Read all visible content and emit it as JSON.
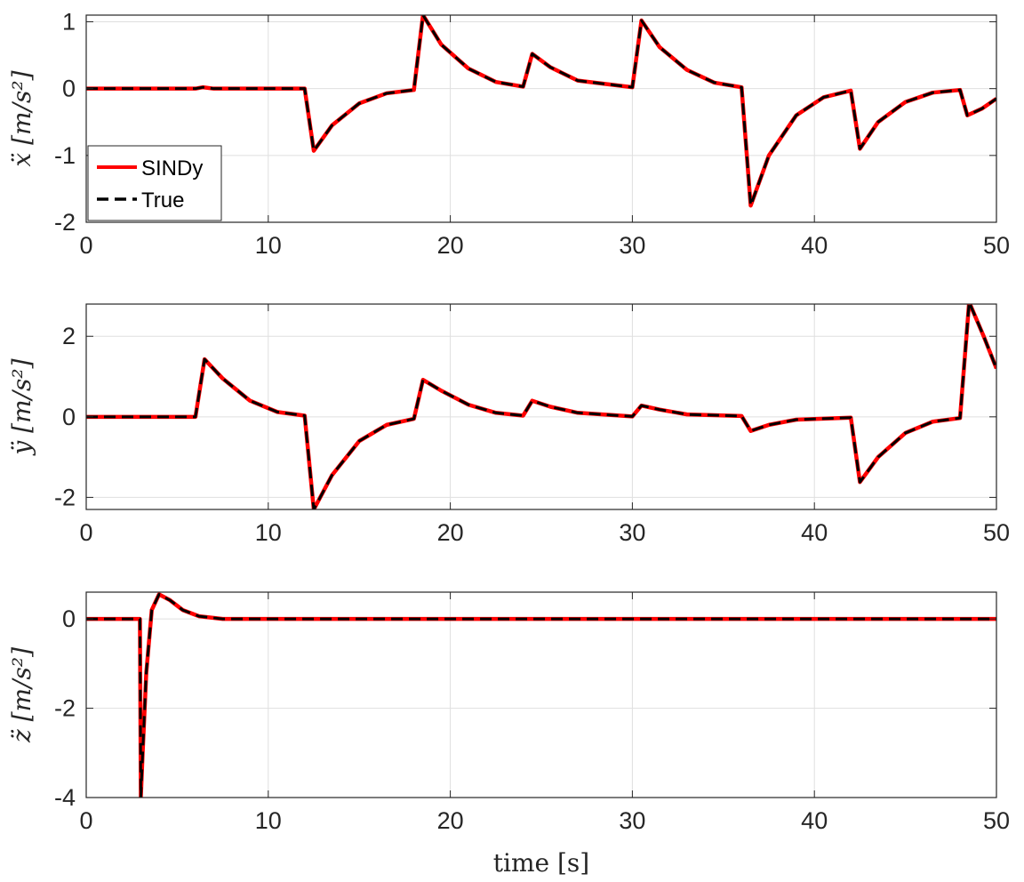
{
  "chart_data": [
    {
      "type": "line",
      "ylabel": "ẍ [m/s²]",
      "xlabel": "",
      "xlim": [
        0,
        50
      ],
      "ylim": [
        -2,
        1.1
      ],
      "xticks": [
        "0",
        "10",
        "20",
        "30",
        "40",
        "50"
      ],
      "yticks": [
        {
          "value": -2,
          "label": "-2"
        },
        {
          "value": -1,
          "label": "-1"
        },
        {
          "value": 0,
          "label": "0"
        },
        {
          "value": 1,
          "label": "1"
        }
      ],
      "grid": true,
      "legend": {
        "placement": "bottom-left",
        "entries": [
          "SINDy",
          "True"
        ]
      },
      "series": [
        {
          "name": "SINDy",
          "color": "#ff0000",
          "style": "solid",
          "x": [
            0,
            6.0,
            6.4,
            7.0,
            12.0,
            12.5,
            13.5,
            15,
            16.5,
            18.0,
            18.5,
            19.5,
            21,
            22.5,
            24.0,
            24.5,
            25.5,
            27,
            30.0,
            30.5,
            31.5,
            33,
            34.5,
            36.0,
            36.5,
            37.5,
            39,
            40.5,
            42.0,
            42.5,
            43.5,
            45,
            46.5,
            48.0,
            48.4,
            49.2,
            50
          ],
          "y": [
            0,
            0,
            0.02,
            0.0,
            0,
            -0.93,
            -0.55,
            -0.22,
            -0.07,
            -0.02,
            1.1,
            0.66,
            0.3,
            0.1,
            0.03,
            0.52,
            0.32,
            0.12,
            0.02,
            1.02,
            0.62,
            0.28,
            0.09,
            0.02,
            -1.75,
            -1.0,
            -0.4,
            -0.13,
            -0.03,
            -0.9,
            -0.5,
            -0.2,
            -0.06,
            -0.02,
            -0.4,
            -0.3,
            -0.15
          ]
        },
        {
          "name": "True",
          "color": "#000000",
          "style": "dashed",
          "x": [
            0,
            6.0,
            6.4,
            7.0,
            12.0,
            12.5,
            13.5,
            15,
            16.5,
            18.0,
            18.5,
            19.5,
            21,
            22.5,
            24.0,
            24.5,
            25.5,
            27,
            30.0,
            30.5,
            31.5,
            33,
            34.5,
            36.0,
            36.5,
            37.5,
            39,
            40.5,
            42.0,
            42.5,
            43.5,
            45,
            46.5,
            48.0,
            48.4,
            49.2,
            50
          ],
          "y": [
            0,
            0,
            0.02,
            0.0,
            0,
            -0.93,
            -0.55,
            -0.22,
            -0.07,
            -0.02,
            1.1,
            0.66,
            0.3,
            0.1,
            0.03,
            0.52,
            0.32,
            0.12,
            0.02,
            1.02,
            0.62,
            0.28,
            0.09,
            0.02,
            -1.75,
            -1.0,
            -0.4,
            -0.13,
            -0.03,
            -0.9,
            -0.5,
            -0.2,
            -0.06,
            -0.02,
            -0.4,
            -0.3,
            -0.15
          ]
        }
      ]
    },
    {
      "type": "line",
      "ylabel": "ÿ [m/s²]",
      "xlabel": "",
      "xlim": [
        0,
        50
      ],
      "ylim": [
        -2.3,
        2.8
      ],
      "xticks": [
        "0",
        "10",
        "20",
        "30",
        "40",
        "50"
      ],
      "yticks": [
        {
          "value": -2,
          "label": "-2"
        },
        {
          "value": 0,
          "label": "0"
        },
        {
          "value": 2,
          "label": "2"
        }
      ],
      "grid": true,
      "series": [
        {
          "name": "SINDy",
          "color": "#ff0000",
          "style": "solid",
          "x": [
            0,
            6.0,
            6.5,
            7.5,
            9,
            10.5,
            12.0,
            12.5,
            13.5,
            15,
            16.5,
            18.0,
            18.5,
            19.5,
            21,
            22.5,
            24.0,
            24.5,
            25.5,
            27,
            30.0,
            30.5,
            31.5,
            33,
            36.0,
            36.5,
            37.5,
            39,
            42.0,
            42.5,
            43.5,
            45,
            46.5,
            48.0,
            48.5,
            49.3,
            50
          ],
          "y": [
            0,
            0,
            1.43,
            0.95,
            0.4,
            0.12,
            0.03,
            -2.3,
            -1.45,
            -0.6,
            -0.2,
            -0.05,
            0.92,
            0.65,
            0.3,
            0.1,
            0.03,
            0.4,
            0.25,
            0.1,
            0.01,
            0.28,
            0.18,
            0.06,
            0.02,
            -0.35,
            -0.2,
            -0.07,
            -0.02,
            -1.62,
            -1.0,
            -0.4,
            -0.12,
            -0.03,
            2.85,
            2.0,
            1.2
          ]
        },
        {
          "name": "True",
          "color": "#000000",
          "style": "dashed",
          "x": [
            0,
            6.0,
            6.5,
            7.5,
            9,
            10.5,
            12.0,
            12.5,
            13.5,
            15,
            16.5,
            18.0,
            18.5,
            19.5,
            21,
            22.5,
            24.0,
            24.5,
            25.5,
            27,
            30.0,
            30.5,
            31.5,
            33,
            36.0,
            36.5,
            37.5,
            39,
            42.0,
            42.5,
            43.5,
            45,
            46.5,
            48.0,
            48.5,
            49.3,
            50
          ],
          "y": [
            0,
            0,
            1.43,
            0.95,
            0.4,
            0.12,
            0.03,
            -2.3,
            -1.45,
            -0.6,
            -0.2,
            -0.05,
            0.92,
            0.65,
            0.3,
            0.1,
            0.03,
            0.4,
            0.25,
            0.1,
            0.01,
            0.28,
            0.18,
            0.06,
            0.02,
            -0.35,
            -0.2,
            -0.07,
            -0.02,
            -1.62,
            -1.0,
            -0.4,
            -0.12,
            -0.03,
            2.85,
            2.0,
            1.2
          ]
        }
      ]
    },
    {
      "type": "line",
      "ylabel": "z̈ [m/s²]",
      "xlabel": "time [s]",
      "xlim": [
        0,
        50
      ],
      "ylim": [
        -4,
        0.6
      ],
      "xticks": [
        "0",
        "10",
        "20",
        "30",
        "40",
        "50"
      ],
      "yticks": [
        {
          "value": -4,
          "label": "-4"
        },
        {
          "value": -2,
          "label": "-2"
        },
        {
          "value": 0,
          "label": "0"
        }
      ],
      "grid": true,
      "series": [
        {
          "name": "SINDy",
          "color": "#ff0000",
          "style": "solid",
          "x": [
            0,
            2.95,
            3.0,
            3.1,
            3.3,
            3.6,
            4.0,
            4.6,
            5.3,
            6.2,
            7.5,
            50
          ],
          "y": [
            0,
            0,
            -4.0,
            -3.0,
            -1.2,
            0.2,
            0.55,
            0.42,
            0.2,
            0.06,
            0.0,
            0
          ]
        },
        {
          "name": "True",
          "color": "#000000",
          "style": "dashed",
          "x": [
            0,
            2.95,
            3.0,
            3.1,
            3.3,
            3.6,
            4.0,
            4.6,
            5.3,
            6.2,
            7.5,
            50
          ],
          "y": [
            0,
            0,
            -4.0,
            -3.0,
            -1.2,
            0.2,
            0.55,
            0.42,
            0.2,
            0.06,
            0.0,
            0
          ]
        }
      ]
    }
  ]
}
